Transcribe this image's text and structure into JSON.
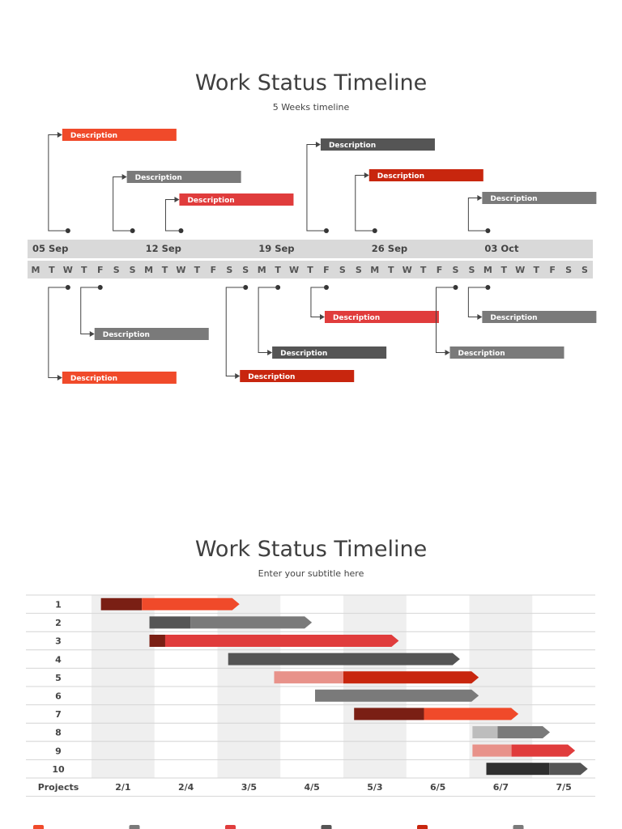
{
  "colors": {
    "red": "#f04a2a",
    "dark_red": "#c8260e",
    "crimson": "#e03c3c",
    "gray": "#7a7a7a",
    "dark_gray": "#555555",
    "maroon": "#7a1f14",
    "light_pink": "#e8928a",
    "light_gray": "#bdbdbd",
    "charcoal": "#2f2f2f",
    "band": "#d9d9d9",
    "stripe": "#efefef"
  },
  "timeline": {
    "title": "Work Status Timeline",
    "subtitle": "5 Weeks timeline",
    "weeks": [
      "05 Sep",
      "12 Sep",
      "19 Sep",
      "26 Sep",
      "03 Oct"
    ],
    "day_letters": [
      "M",
      "T",
      "W",
      "T",
      "F",
      "S",
      "S"
    ],
    "above_tasks": [
      {
        "label": "Description",
        "color": "red",
        "anchor_day": 2
      },
      {
        "label": "Description",
        "color": "gray",
        "anchor_day": 6
      },
      {
        "label": "Description",
        "color": "crimson",
        "anchor_day": 9
      },
      {
        "label": "Description",
        "color": "dark_gray",
        "anchor_day": 18
      },
      {
        "label": "Description",
        "color": "dark_red",
        "anchor_day": 21
      },
      {
        "label": "Description",
        "color": "gray",
        "anchor_day": 28
      }
    ],
    "below_tasks": [
      {
        "label": "Description",
        "color": "gray",
        "anchor_day": 4
      },
      {
        "label": "Description",
        "color": "red",
        "anchor_day": 2
      },
      {
        "label": "Description",
        "color": "crimson",
        "anchor_day": 18
      },
      {
        "label": "Description",
        "color": "dark_gray",
        "anchor_day": 15
      },
      {
        "label": "Description",
        "color": "dark_red",
        "anchor_day": 13
      },
      {
        "label": "Description",
        "color": "gray",
        "anchor_day": 28
      },
      {
        "label": "Description",
        "color": "gray",
        "anchor_day": 26
      }
    ]
  },
  "gantt": {
    "title": "Work Status Timeline",
    "subtitle": "Enter your subtitle here",
    "row_header": "Projects",
    "periods": [
      "2/1",
      "2/4",
      "3/5",
      "4/5",
      "5/3",
      "6/5",
      "6/7",
      "7/5"
    ]
  },
  "chart_data": {
    "type": "bar",
    "orientation": "horizontal",
    "title": "Work Status Timeline",
    "subtitle": "Enter your subtitle here",
    "ylabel": "Projects",
    "categories": [
      "1",
      "2",
      "3",
      "4",
      "5",
      "6",
      "7",
      "8",
      "9",
      "10"
    ],
    "x_ticks": [
      "2/1",
      "2/4",
      "3/5",
      "4/5",
      "5/3",
      "6/5",
      "6/7",
      "7/5"
    ],
    "xlim": [
      0,
      8
    ],
    "series": [
      {
        "values": [
          {
            "start": 0.15,
            "split": 0.8,
            "end": 2.35,
            "c1": "maroon",
            "c2": "red"
          },
          {
            "start": 0.92,
            "split": 1.57,
            "end": 3.5,
            "c1": "dark_gray",
            "c2": "gray"
          },
          {
            "start": 0.92,
            "split": 1.17,
            "end": 4.88,
            "c1": "maroon",
            "c2": "crimson"
          },
          {
            "start": 2.17,
            "split": 2.17,
            "end": 5.85,
            "c1": "dark_gray",
            "c2": "dark_gray"
          },
          {
            "start": 2.9,
            "split": 4.0,
            "end": 6.15,
            "c1": "light_pink",
            "c2": "dark_red"
          },
          {
            "start": 3.55,
            "split": 3.55,
            "end": 6.15,
            "c1": "gray",
            "c2": "gray"
          },
          {
            "start": 4.17,
            "split": 5.28,
            "end": 6.78,
            "c1": "maroon",
            "c2": "red"
          },
          {
            "start": 6.05,
            "split": 6.45,
            "end": 7.28,
            "c1": "light_gray",
            "c2": "gray"
          },
          {
            "start": 6.05,
            "split": 6.67,
            "end": 7.68,
            "c1": "light_pink",
            "c2": "crimson"
          },
          {
            "start": 6.27,
            "split": 7.27,
            "end": 7.88,
            "c1": "charcoal",
            "c2": "dark_gray"
          }
        ]
      }
    ],
    "legend_colors": [
      "red",
      "gray",
      "crimson",
      "dark_gray",
      "dark_red",
      "gray"
    ],
    "grid": "alternating column shading"
  }
}
